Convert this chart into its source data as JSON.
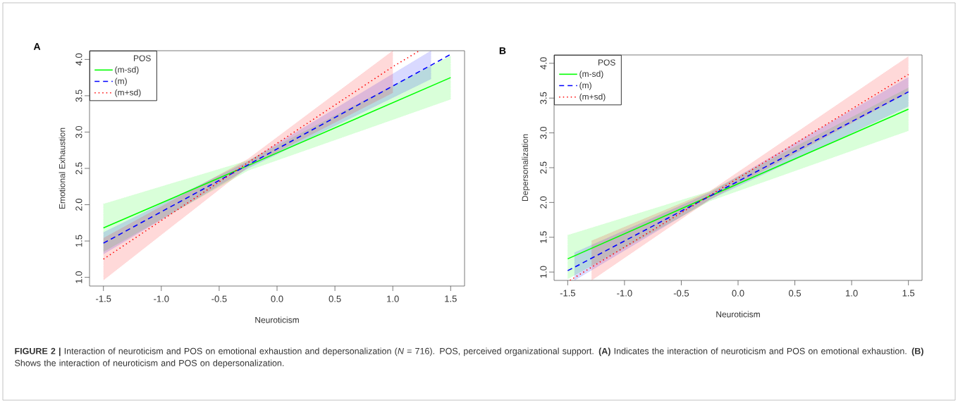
{
  "chart_data": [
    {
      "type": "line",
      "title": "A",
      "xlabel": "Neuroticism",
      "ylabel": "Emotional Exhaustion",
      "legend_title": "POS",
      "legend": "top left",
      "xlim": [
        -1.62,
        1.62
      ],
      "ylim": [
        0.88,
        4.12
      ],
      "xticks": [
        -1.5,
        {
          "value": -1,
          "label": "-1.0"
        },
        -0.5,
        {
          "value": 0,
          "label": "0.0"
        },
        0.5,
        {
          "value": 1,
          "label": "1.0"
        },
        1.5
      ],
      "yticks": [
        {
          "value": 1,
          "label": "1.0"
        },
        1.5,
        {
          "value": 2,
          "label": "2.0"
        },
        2.5,
        {
          "value": 3,
          "label": "3.0"
        },
        3.5,
        {
          "value": 4,
          "label": "4.0"
        }
      ],
      "series": [
        {
          "name": "(m-sd)",
          "color": "#00ff00",
          "line_style": "solid",
          "x": [
            -1.5,
            -0.25,
            1.5
          ],
          "values": [
            1.68,
            2.54,
            3.75
          ],
          "lower": [
            1.35,
            2.47,
            3.45
          ],
          "upper": [
            2.01,
            2.61,
            4.05
          ]
        },
        {
          "name": "(m)",
          "color": "#0000ff",
          "line_style": "dashed",
          "x": [
            -1.5,
            -0.25,
            1.33,
            1.5
          ],
          "values": [
            1.47,
            2.55,
            3.92,
            4.07
          ],
          "lower": [
            1.32,
            2.5,
            3.73,
            null
          ],
          "upper": [
            1.62,
            2.6,
            4.12,
            null
          ]
        },
        {
          "name": "(m+sd)",
          "color": "#ff0000",
          "line_style": "dotted",
          "x": [
            -1.5,
            -0.25,
            1.0,
            1.22
          ],
          "values": [
            1.25,
            2.58,
            3.9,
            4.11
          ],
          "lower": [
            0.96,
            2.52,
            3.54,
            null
          ],
          "upper": [
            1.54,
            2.63,
            4.12,
            null
          ]
        }
      ],
      "annotations": [
        "**FIGURE 2 |** Interaction of neuroticism and POS on emotional exhaustion and depersonalization (*N* = 716). POS, perceived organizational support. **(A)** Indicates the interaction of neuroticism and POS on emotional exhaustion. **(B)** Shows the interaction of neuroticism and POS on depersonalization."
      ]
    },
    {
      "type": "line",
      "title": "B",
      "xlabel": "Neuroticism",
      "ylabel": "Depersonalization",
      "legend_title": "POS",
      "legend": "top left",
      "xlim": [
        -1.62,
        1.62
      ],
      "ylim": [
        0.88,
        4.12
      ],
      "xticks": [
        -1.5,
        {
          "value": -1,
          "label": "-1.0"
        },
        -0.5,
        {
          "value": 0,
          "label": "0.0"
        },
        0.5,
        {
          "value": 1,
          "label": "1.0"
        },
        1.5
      ],
      "yticks": [
        {
          "value": 1,
          "label": "1.0"
        },
        1.5,
        {
          "value": 2,
          "label": "2.0"
        },
        2.5,
        {
          "value": 3,
          "label": "3.0"
        },
        3.5,
        {
          "value": 4,
          "label": "4.0"
        }
      ],
      "series": [
        {
          "name": "(m-sd)",
          "color": "#00ff00",
          "line_style": "solid",
          "x": [
            -1.5,
            -0.25,
            1.5
          ],
          "values": [
            1.19,
            2.09,
            3.34
          ],
          "lower": [
            0.9,
            2.02,
            3.03
          ],
          "upper": [
            1.53,
            2.16,
            3.65
          ]
        },
        {
          "name": "(m)",
          "color": "#0000ff",
          "line_style": "dashed",
          "x": [
            -1.5,
            -1.44,
            -0.25,
            1.5
          ],
          "values": [
            1.02,
            1.07,
            2.09,
            3.59
          ],
          "lower": [
            null,
            0.88,
            2.04,
            3.38
          ],
          "upper": [
            null,
            1.28,
            2.14,
            3.8
          ]
        },
        {
          "name": "(m+sd)",
          "color": "#ff0000",
          "line_style": "dotted",
          "x": [
            -1.48,
            -1.29,
            -0.25,
            1.5
          ],
          "values": [
            0.88,
            1.07,
            2.1,
            3.84
          ],
          "lower": [
            null,
            0.88,
            2.04,
            3.58
          ],
          "upper": [
            null,
            1.45,
            2.16,
            4.1
          ]
        }
      ]
    }
  ]
}
